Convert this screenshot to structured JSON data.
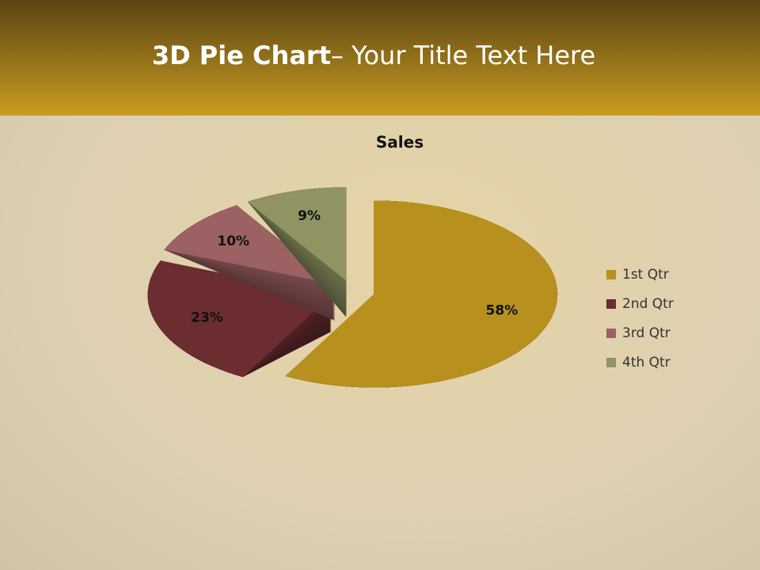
{
  "slide_title": {
    "bold": "3D Pie Chart",
    "rest": "– Your Title Text Here"
  },
  "chart_data": {
    "type": "pie3d",
    "title": "Sales",
    "categories": [
      "1st Qtr",
      "2nd Qtr",
      "3rd Qtr",
      "4th Qtr"
    ],
    "values": [
      58,
      23,
      10,
      9
    ],
    "value_labels": [
      "58%",
      "23%",
      "10%",
      "9%"
    ],
    "colors": [
      "#b8901e",
      "#6b2d30",
      "#9c6163",
      "#8f9462"
    ],
    "legend": "right"
  }
}
